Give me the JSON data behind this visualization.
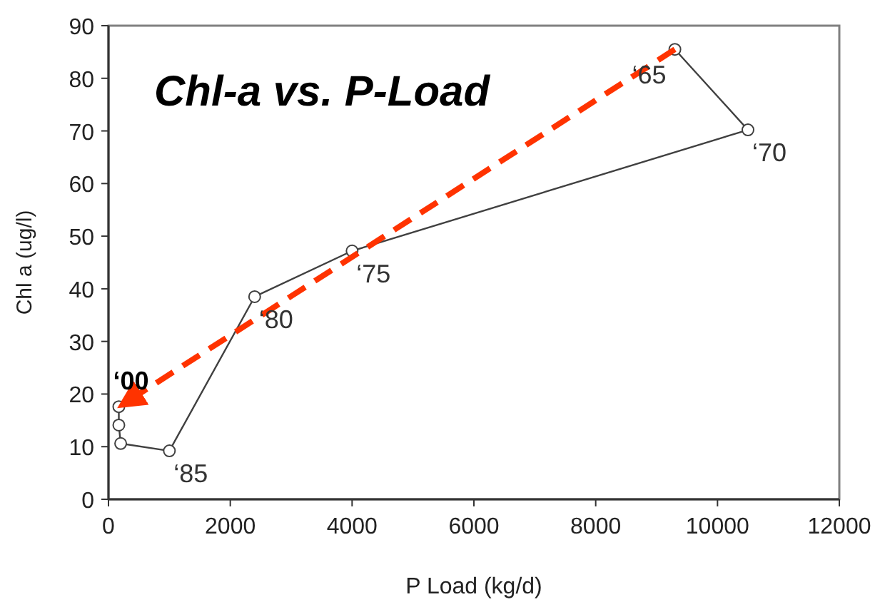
{
  "chart_data": {
    "type": "line",
    "title": "Chl-a vs. P-Load",
    "xlabel": "P Load (kg/d)",
    "ylabel": "Chl a (ug/l)",
    "xlim": [
      0,
      12000
    ],
    "xticks": [
      0,
      2000,
      4000,
      6000,
      8000,
      10000,
      12000
    ],
    "ylim": [
      0,
      90
    ],
    "yticks": [
      0,
      10,
      20,
      30,
      40,
      50,
      60,
      70,
      80,
      90
    ],
    "grid": false,
    "series": [
      {
        "color": "#404040",
        "marker": "circle",
        "line_style": "solid",
        "x": [
          9300,
          10500,
          4000,
          2400,
          1000,
          200,
          170,
          170
        ],
        "values": [
          85.5,
          70.2,
          47.2,
          38.5,
          9.2,
          10.6,
          14.1,
          17.6
        ]
      },
      {
        "color": "#ff3300",
        "marker": "none",
        "line_style": "dashed",
        "x": [
          9300,
          300
        ],
        "values": [
          85.5,
          18.5
        ]
      }
    ],
    "annotations": [
      {
        "text": "‘65",
        "x": 9300,
        "y": 85.5
      },
      {
        "text": "‘70",
        "x": 10500,
        "y": 70.2
      },
      {
        "text": "‘75",
        "x": 4000,
        "y": 47.2
      },
      {
        "text": "‘80",
        "x": 2400,
        "y": 38.5
      },
      {
        "text": "‘85",
        "x": 1000,
        "y": 9.2
      },
      {
        "text": "‘00",
        "x": 170,
        "y": 17.6
      }
    ]
  }
}
